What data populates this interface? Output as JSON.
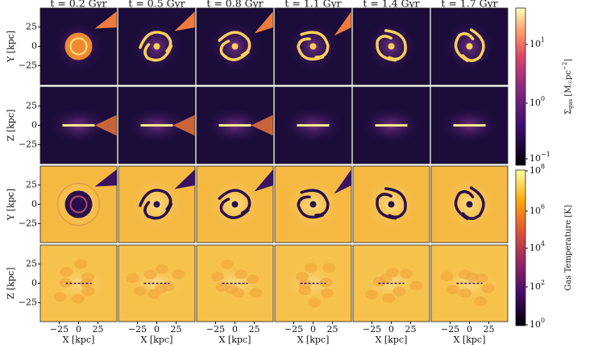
{
  "columns": [
    "t = 0.2 Gyr",
    "t = 0.5 Gyr",
    "t = 0.8 Gyr",
    "t = 1.1 Gyr",
    "t = 1.4 Gyr",
    "t = 1.7 Gyr"
  ],
  "rows": [
    {
      "ylabel": "Y [kpc]",
      "yticks": [
        "25",
        "0",
        "−25"
      ]
    },
    {
      "ylabel": "Z [kpc]",
      "yticks": [
        "25",
        "0",
        "−25"
      ]
    },
    {
      "ylabel": "Y [kpc]",
      "yticks": [
        "25",
        "0",
        "−25"
      ]
    },
    {
      "ylabel": "Z [kpc]",
      "yticks": [
        "25",
        "0",
        "−25"
      ]
    }
  ],
  "xticks": [
    "−25",
    "0",
    "25"
  ],
  "xlabel": "X [kpc]",
  "colorbars": [
    {
      "label": [
        {
          "text": "Σ"
        },
        {
          "text": "gas",
          "sub": true
        },
        {
          "text": " [M"
        },
        {
          "text": "☉",
          "sub": true
        },
        {
          "text": "pc"
        },
        {
          "text": "−2",
          "sup": true
        },
        {
          "text": "]"
        }
      ],
      "ticks": [
        {
          "base": "10",
          "exp": "1"
        },
        {
          "base": "10",
          "exp": "0"
        },
        {
          "base": "10",
          "exp": "−1"
        }
      ]
    },
    {
      "label": [
        {
          "text": "Gas Temperature [K]"
        }
      ],
      "ticks": [
        {
          "base": "10",
          "exp": "8"
        },
        {
          "base": "10",
          "exp": "6"
        },
        {
          "base": "10",
          "exp": "4"
        },
        {
          "base": "10",
          "exp": "2"
        },
        {
          "base": "10",
          "exp": "0"
        }
      ]
    }
  ]
}
